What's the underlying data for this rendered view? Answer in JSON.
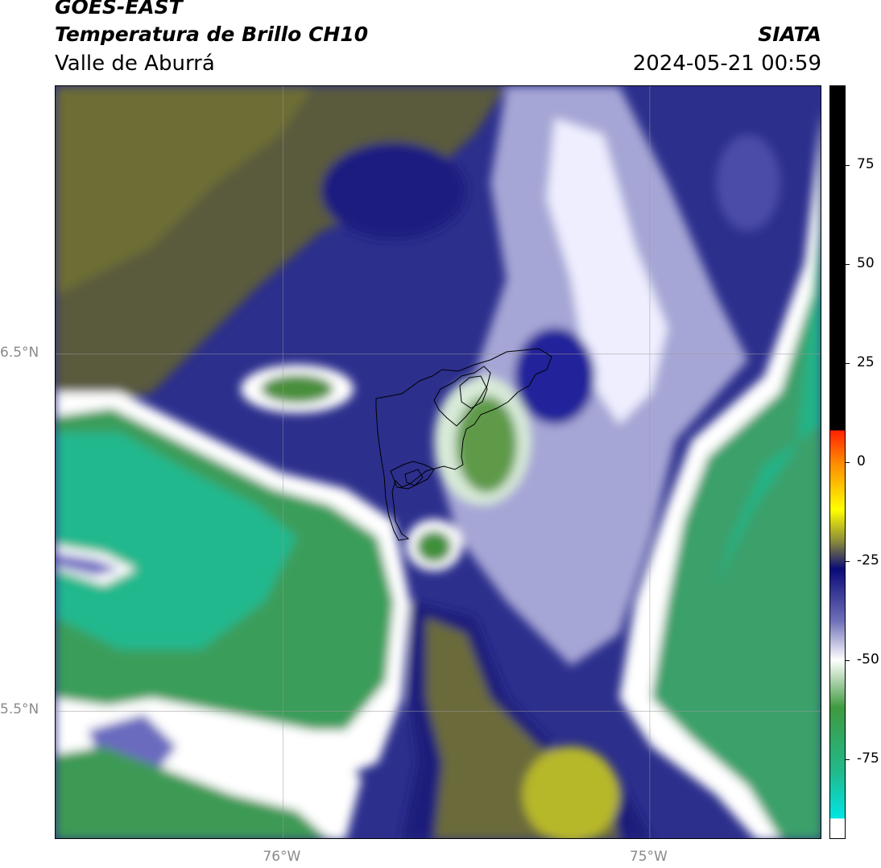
{
  "header": {
    "satellite": "GOES-EAST",
    "product": "Temperatura de Brillo CH10",
    "region": "Valle de Aburrá",
    "brand": "SIATA",
    "datetime": "2024-05-21 00:59"
  },
  "map": {
    "lat_labels": [
      "6.5°N",
      "5.5°N"
    ],
    "lon_labels": [
      "76°W",
      "75°W"
    ],
    "lat_values": [
      6.5,
      5.5
    ],
    "lon_values": [
      -76,
      -75
    ],
    "extent": {
      "lon_min": -76.62,
      "lon_max": -74.53,
      "lat_min": 5.14,
      "lat_max": 7.25
    }
  },
  "colorbar": {
    "labels": [
      "75",
      "50",
      "25",
      "0",
      "-25",
      "-50",
      "-75"
    ],
    "values": [
      75,
      50,
      25,
      0,
      -25,
      -50,
      -75
    ],
    "vmin": -95,
    "vmax": 95,
    "colors": {
      "warm": "#000000",
      "red": "#ff2200",
      "orange": "#ff8800",
      "yellow": "#ffff00",
      "olive": "#8a8a3a",
      "navy": "#0a0a78",
      "blue": "#6e6eb8",
      "white": "#ffffff",
      "green": "#3f9a3f",
      "teal": "#22b98a",
      "cyan": "#00e5e5"
    }
  }
}
